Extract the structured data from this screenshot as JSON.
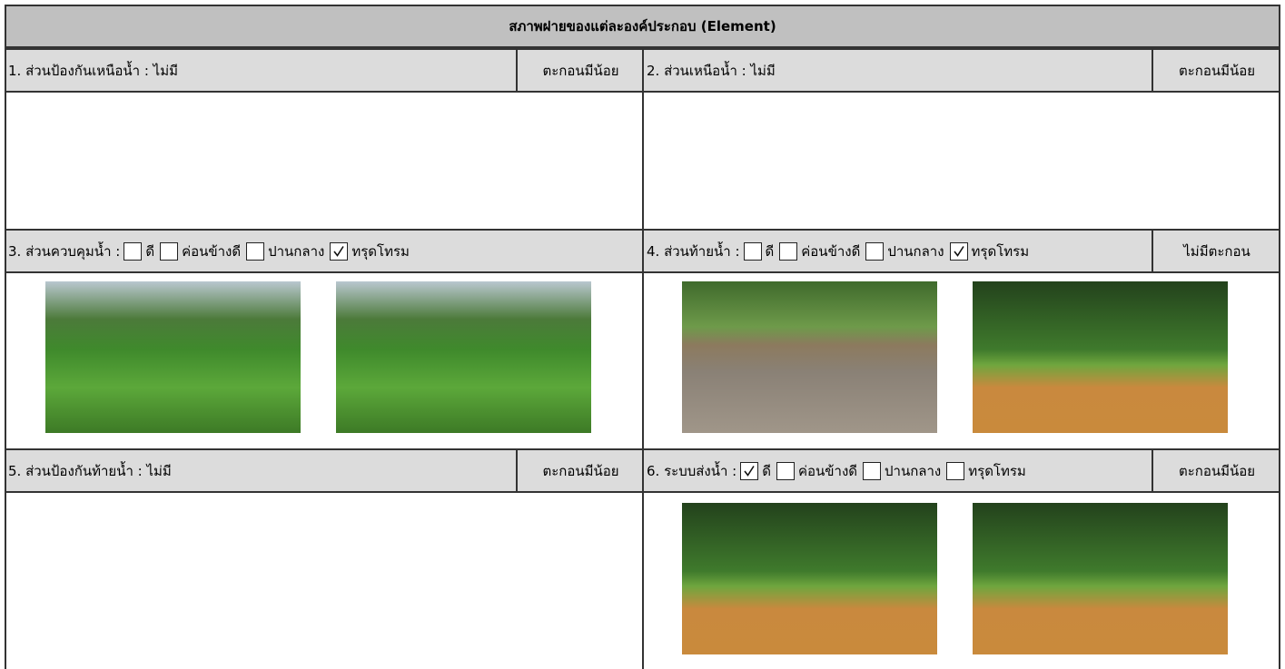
{
  "header": {
    "title": "สภาพฝายของแต่ละองค์ประกอบ (Element)"
  },
  "sections": [
    {
      "label": "1. ส่วนป้องกันเหนือน้ำ : ไม่มี",
      "sediment": "ตะกอนมีน้อย"
    },
    {
      "label": "2. ส่วนเหนือน้ำ : ไม่มี",
      "sediment": "ตะกอนมีน้อย"
    },
    {
      "label": "3. ส่วนควบคุมน้ำ :",
      "options": [
        {
          "text": "ดี",
          "checked": false
        },
        {
          "text": "ค่อนข้างดี",
          "checked": false
        },
        {
          "text": "ปานกลาง",
          "checked": false
        },
        {
          "text": "ทรุดโทรม",
          "checked": true
        }
      ]
    },
    {
      "label": "4. ส่วนท้ายน้ำ :",
      "options": [
        {
          "text": "ดี",
          "checked": false
        },
        {
          "text": "ค่อนข้างดี",
          "checked": false
        },
        {
          "text": "ปานกลาง",
          "checked": false
        },
        {
          "text": "ทรุดโทรม",
          "checked": true
        }
      ],
      "sediment": "ไม่มีตะกอน"
    },
    {
      "label": "5. ส่วนป้องกันท้ายน้ำ : ไม่มี",
      "sediment": "ตะกอนมีน้อย"
    },
    {
      "label": "6. ระบบส่งน้ำ :",
      "options": [
        {
          "text": "ดี",
          "checked": true
        },
        {
          "text": "ค่อนข้างดี",
          "checked": false
        },
        {
          "text": "ปานกลาง",
          "checked": false
        },
        {
          "text": "ทรุดโทรม",
          "checked": false
        }
      ],
      "sediment": "ตะกอนมีน้อย"
    }
  ]
}
